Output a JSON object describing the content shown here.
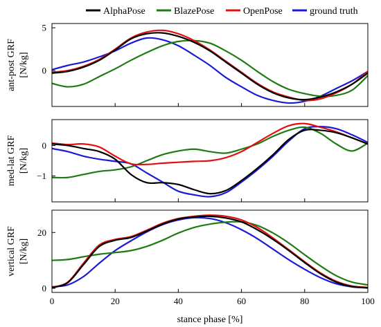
{
  "chart_data": {
    "type": "line",
    "x_label": "stance phase [%]",
    "x_ticks": [
      "0",
      "20",
      "40",
      "60",
      "80",
      "100"
    ],
    "xlim": [
      0,
      100
    ],
    "legend": {
      "placement": "top",
      "entries": [
        {
          "name": "AlphaPose",
          "color": "#000000"
        },
        {
          "name": "BlazePose",
          "color": "#1e7a12"
        },
        {
          "name": "OpenPose",
          "color": "#e01010"
        },
        {
          "name": "ground truth",
          "color": "#1a1ad6"
        }
      ]
    },
    "panels": [
      {
        "ylabel_line1": "ant-post GRF",
        "ylabel_line2": "[N/kg]",
        "ylim": [
          -4.2,
          5.5
        ],
        "y_ticks": [
          {
            "value": -5,
            "label": ""
          },
          {
            "value": 0,
            "label": "0"
          },
          {
            "value": 5,
            "label": "5"
          }
        ],
        "x": [
          0,
          5,
          10,
          15,
          20,
          25,
          30,
          35,
          40,
          45,
          50,
          55,
          60,
          65,
          70,
          75,
          80,
          85,
          90,
          95,
          100
        ],
        "series": [
          {
            "name": "AlphaPose",
            "values": [
              -0.3,
              -0.1,
              0.4,
              1.2,
              2.4,
              3.7,
              4.3,
              4.4,
              4.0,
              3.3,
              2.3,
              1.0,
              -0.3,
              -1.6,
              -2.6,
              -3.2,
              -3.4,
              -3.1,
              -2.5,
              -1.6,
              -0.3
            ]
          },
          {
            "name": "BlazePose",
            "values": [
              -1.5,
              -1.9,
              -1.6,
              -0.7,
              0.2,
              1.2,
              2.1,
              2.9,
              3.4,
              3.5,
              3.2,
              2.3,
              1.2,
              -0.1,
              -1.3,
              -2.2,
              -2.7,
              -3.0,
              -2.9,
              -2.3,
              -0.6
            ]
          },
          {
            "name": "OpenPose",
            "values": [
              -0.2,
              0.0,
              0.5,
              1.3,
              2.5,
              3.8,
              4.5,
              4.7,
              4.3,
              3.5,
              2.4,
              1.1,
              -0.2,
              -1.5,
              -2.5,
              -3.1,
              -3.5,
              -3.3,
              -2.6,
              -1.6,
              -0.1
            ]
          },
          {
            "name": "ground truth",
            "values": [
              0.1,
              0.6,
              1.0,
              1.6,
              2.3,
              3.2,
              3.8,
              3.6,
              2.9,
              1.8,
              0.6,
              -0.8,
              -1.9,
              -2.9,
              -3.5,
              -3.8,
              -3.6,
              -3.0,
              -2.1,
              -1.2,
              -0.1
            ]
          }
        ]
      },
      {
        "ylabel_line1": "med-lat GRF",
        "ylabel_line2": "[N/kg]",
        "ylim": [
          -1.85,
          0.85
        ],
        "y_ticks": [
          {
            "value": 0,
            "label": "0"
          },
          {
            "value": -1,
            "label": "−1"
          }
        ],
        "x": [
          0,
          5,
          10,
          15,
          20,
          25,
          30,
          35,
          40,
          45,
          50,
          55,
          60,
          65,
          70,
          75,
          80,
          85,
          90,
          95,
          100
        ],
        "series": [
          {
            "name": "AlphaPose",
            "values": [
              0.05,
              0.0,
              -0.1,
              -0.2,
              -0.45,
              -0.95,
              -1.22,
              -1.22,
              -1.28,
              -1.45,
              -1.58,
              -1.48,
              -1.15,
              -0.75,
              -0.3,
              0.2,
              0.5,
              0.5,
              0.42,
              0.25,
              0.05
            ]
          },
          {
            "name": "BlazePose",
            "values": [
              -1.05,
              -1.05,
              -0.95,
              -0.85,
              -0.8,
              -0.7,
              -0.5,
              -0.3,
              -0.18,
              -0.12,
              -0.2,
              -0.25,
              -0.12,
              0.05,
              0.3,
              0.5,
              0.6,
              0.4,
              0.05,
              -0.18,
              0.08
            ]
          },
          {
            "name": "OpenPose",
            "values": [
              0.08,
              0.03,
              0.05,
              -0.05,
              -0.35,
              -0.6,
              -0.62,
              -0.58,
              -0.55,
              -0.52,
              -0.5,
              -0.4,
              -0.2,
              0.1,
              0.4,
              0.65,
              0.72,
              0.6,
              0.45,
              0.25,
              0.05
            ]
          },
          {
            "name": "ground truth",
            "values": [
              -0.1,
              -0.2,
              -0.35,
              -0.45,
              -0.52,
              -0.6,
              -0.9,
              -1.2,
              -1.5,
              -1.62,
              -1.68,
              -1.55,
              -1.2,
              -0.8,
              -0.35,
              0.15,
              0.55,
              0.62,
              0.55,
              0.35,
              0.1
            ]
          }
        ]
      },
      {
        "ylabel_line1": "vertical GRF",
        "ylabel_line2": "[N/kg]",
        "ylim": [
          -1.5,
          28
        ],
        "y_ticks": [
          {
            "value": 0,
            "label": "0"
          },
          {
            "value": 20,
            "label": "20"
          }
        ],
        "x": [
          0,
          5,
          10,
          15,
          20,
          25,
          30,
          35,
          40,
          45,
          50,
          55,
          60,
          65,
          70,
          75,
          80,
          85,
          90,
          95,
          100
        ],
        "series": [
          {
            "name": "AlphaPose",
            "values": [
              0.2,
              2.0,
              8.5,
              15.0,
              17.2,
              18.2,
              20.5,
              23.0,
              24.8,
              25.6,
              25.8,
              25.2,
              23.8,
              21.0,
              17.5,
              13.5,
              9.2,
              5.2,
              2.2,
              0.6,
              0.2
            ]
          },
          {
            "name": "BlazePose",
            "values": [
              10.0,
              10.3,
              11.3,
              12.2,
              12.8,
              13.5,
              15.0,
              17.2,
              19.8,
              21.8,
              23.0,
              23.7,
              23.8,
              22.5,
              19.8,
              16.2,
              12.0,
              8.0,
              4.5,
              2.2,
              1.2
            ]
          },
          {
            "name": "OpenPose",
            "values": [
              0.3,
              2.2,
              9.0,
              15.5,
              17.5,
              18.5,
              20.8,
              23.3,
              25.0,
              25.8,
              26.2,
              25.8,
              24.5,
              21.8,
              18.0,
              13.8,
              9.5,
              5.5,
              2.5,
              0.8,
              0.3
            ]
          },
          {
            "name": "ground truth",
            "values": [
              0.5,
              1.2,
              4.2,
              9.0,
              13.5,
              17.0,
              20.2,
              22.8,
              24.5,
              25.3,
              25.0,
              23.5,
              21.0,
              17.8,
              14.0,
              10.2,
              6.8,
              3.8,
              1.6,
              0.5,
              0.1
            ]
          }
        ]
      }
    ]
  }
}
